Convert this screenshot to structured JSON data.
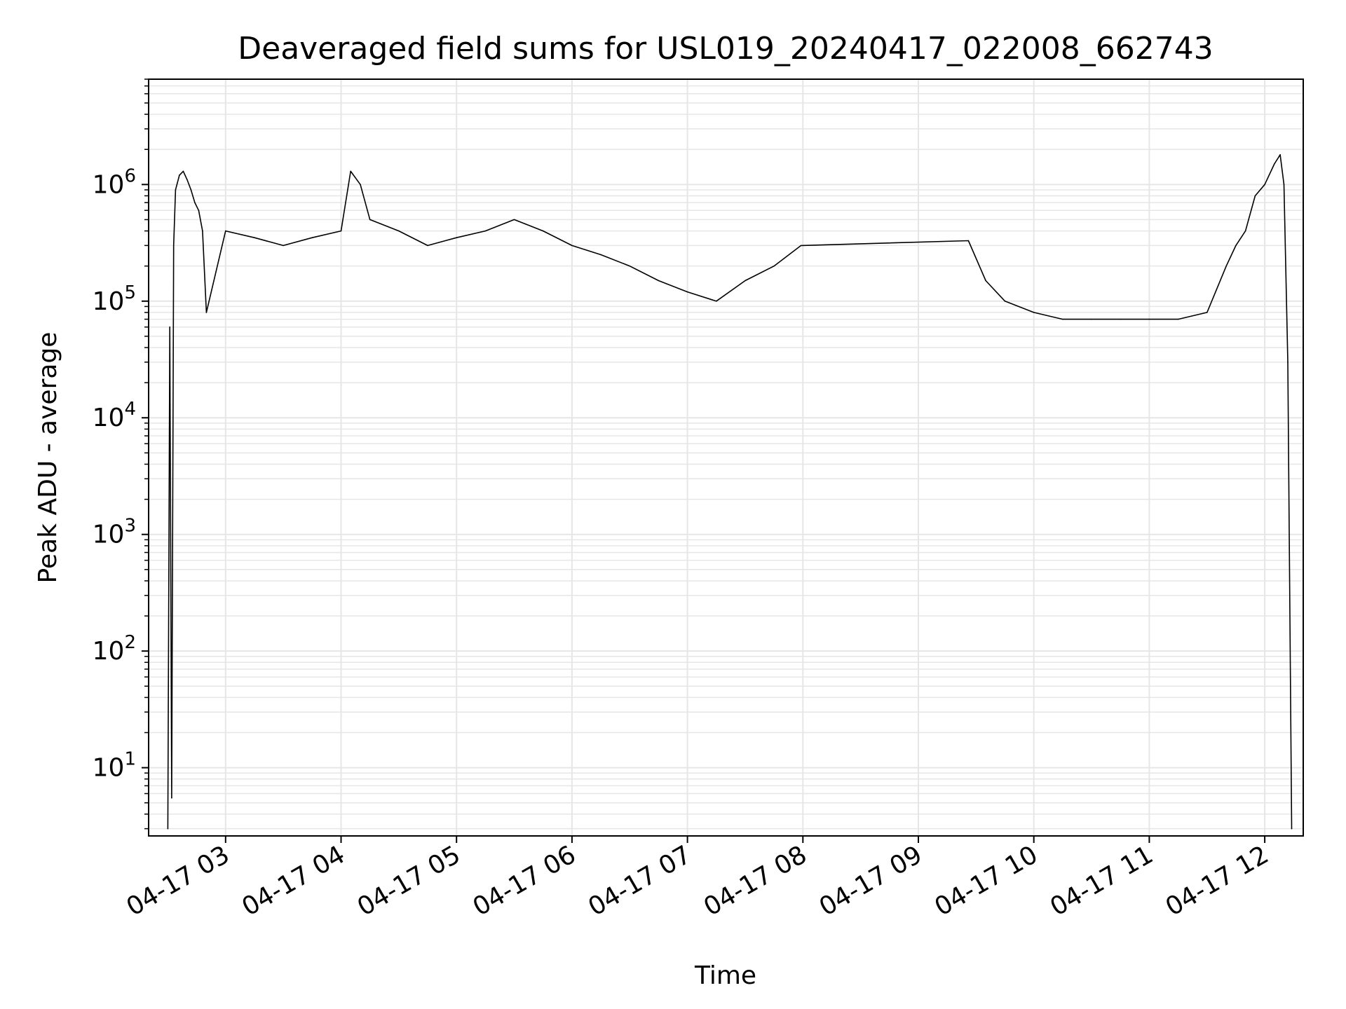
{
  "chart_data": {
    "type": "line",
    "title": "Deaveraged field sums for USL019_20240417_022008_662743",
    "xlabel": "Time",
    "ylabel": "Peak ADU - average",
    "yscale": "log",
    "ylim": [
      2.6,
      8000000
    ],
    "xlim": [
      "04-17 02:20",
      "04-17 12:20"
    ],
    "x_ticks": [
      "04-17 03",
      "04-17 04",
      "04-17 05",
      "04-17 06",
      "04-17 07",
      "04-17 08",
      "04-17 09",
      "04-17 10",
      "04-17 11",
      "04-17 12"
    ],
    "y_ticks": [
      {
        "base": "10",
        "exp": "1"
      },
      {
        "base": "10",
        "exp": "2"
      },
      {
        "base": "10",
        "exp": "3"
      },
      {
        "base": "10",
        "exp": "4"
      },
      {
        "base": "10",
        "exp": "5"
      },
      {
        "base": "10",
        "exp": "6"
      }
    ],
    "grid": "major and minor",
    "line_color": "#000000",
    "grid_color": "#e6e6e6",
    "series": [
      {
        "x": [
          "04-17 02:30",
          "04-17 02:31",
          "04-17 02:32",
          "04-17 02:33",
          "04-17 02:34",
          "04-17 02:36",
          "04-17 02:38",
          "04-17 02:40",
          "04-17 02:42",
          "04-17 02:44",
          "04-17 02:46",
          "04-17 02:48",
          "04-17 02:50",
          "04-17 03:00",
          "04-17 03:15",
          "04-17 03:30",
          "04-17 03:45",
          "04-17 04:00",
          "04-17 04:05",
          "04-17 04:10",
          "04-17 04:15",
          "04-17 04:30",
          "04-17 04:45",
          "04-17 05:00",
          "04-17 05:15",
          "04-17 05:30",
          "04-17 05:45",
          "04-17 06:00",
          "04-17 06:15",
          "04-17 06:30",
          "04-17 06:45",
          "04-17 07:00",
          "04-17 07:15",
          "04-17 07:30",
          "04-17 07:45",
          "04-17 07:59",
          "04-17 09:26",
          "04-17 09:35",
          "04-17 09:45",
          "04-17 10:00",
          "04-17 10:15",
          "04-17 10:30",
          "04-17 10:45",
          "04-17 11:00",
          "04-17 11:15",
          "04-17 11:30",
          "04-17 11:40",
          "04-17 11:45",
          "04-17 11:50",
          "04-17 11:55",
          "04-17 12:00",
          "04-17 12:05",
          "04-17 12:08",
          "04-17 12:10",
          "04-17 12:12",
          "04-17 12:14"
        ],
        "values": [
          3,
          60000,
          5.5,
          300000,
          900000,
          1200000,
          1300000,
          1100000,
          900000,
          700000,
          600000,
          400000,
          80000,
          400000,
          350000,
          300000,
          350000,
          400000,
          1300000,
          1000000,
          500000,
          400000,
          300000,
          350000,
          400000,
          500000,
          400000,
          300000,
          250000,
          200000,
          150000,
          120000,
          100000,
          150000,
          200000,
          300000,
          330000,
          150000,
          100000,
          80000,
          70000,
          70000,
          70000,
          70000,
          70000,
          80000,
          200000,
          300000,
          400000,
          800000,
          1000000,
          1500000,
          1800000,
          1000000,
          30000,
          3
        ]
      }
    ]
  }
}
